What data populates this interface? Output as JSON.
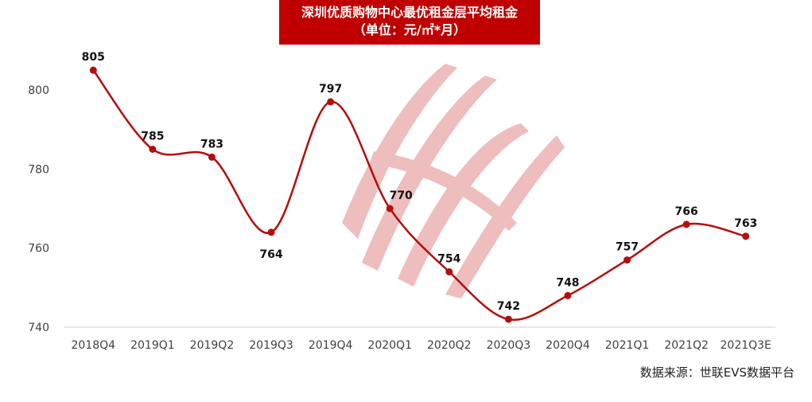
{
  "title_line1": "深圳优质购物中心最优租金层平均租金",
  "title_line2": "（单位：元/㎡*月）",
  "source": "数据来源：世联EVS数据平台",
  "colors": {
    "line": "#b50d0d",
    "title_bg": "#c00000",
    "watermark": "#e9a8a8"
  },
  "chart_data": {
    "type": "line",
    "title": "深圳优质购物中心最优租金层平均租金（单位：元/㎡*月）",
    "categories": [
      "2018Q4",
      "2019Q1",
      "2019Q2",
      "2019Q3",
      "2019Q4",
      "2020Q1",
      "2020Q2",
      "2020Q3",
      "2020Q4",
      "2021Q1",
      "2021Q2",
      "2021Q3E"
    ],
    "values": [
      805,
      785,
      783,
      764,
      797,
      770,
      754,
      742,
      748,
      757,
      766,
      763
    ],
    "data_labels": [
      "805",
      "785",
      "783",
      "764",
      "797",
      "770",
      "754",
      "742",
      "748",
      "757",
      "766",
      "763"
    ],
    "yticks": [
      "740",
      "760",
      "780",
      "800"
    ],
    "ylim": [
      740,
      800
    ],
    "smooth": true,
    "grid": false,
    "legend": "none"
  }
}
